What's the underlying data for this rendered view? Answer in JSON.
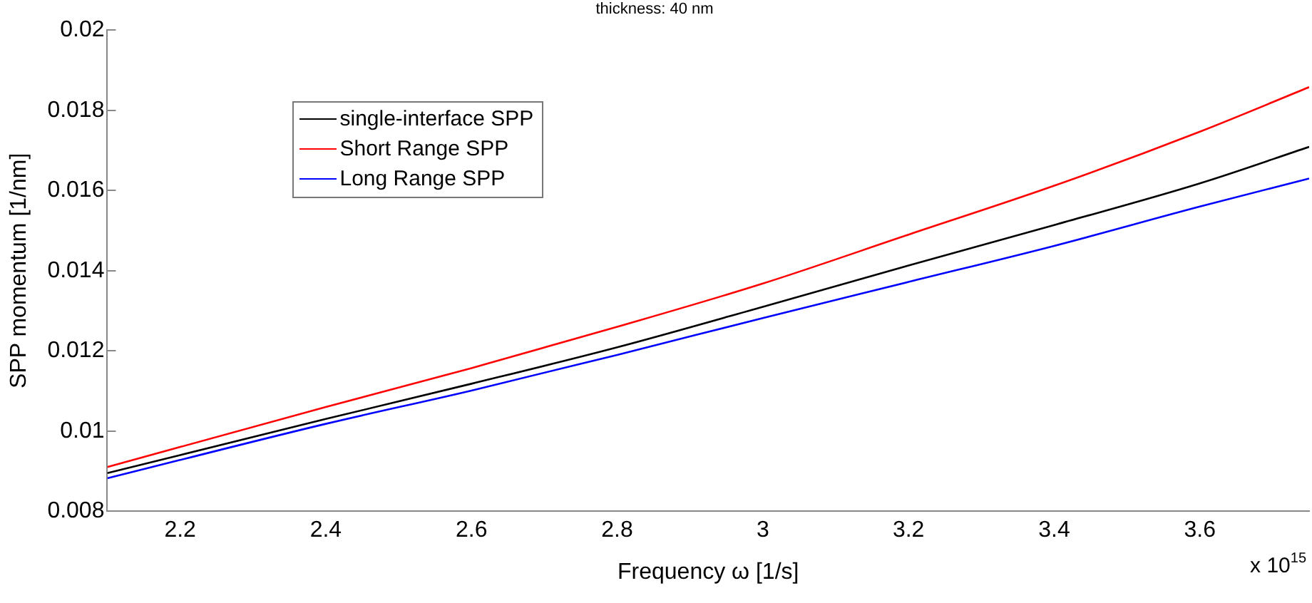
{
  "chart_data": {
    "type": "line",
    "title": "thickness: 40 nm",
    "xlabel": "Frequency ω [1/s]",
    "ylabel": "SPP momentum [1/nm]",
    "annotations": [
      "x 10$^{15}$"
    ],
    "x": [
      2.1,
      2.4,
      2.6,
      2.8,
      3.0,
      3.2,
      3.4,
      3.6,
      3.75
    ],
    "series": [
      {
        "name": "single-interface SPP",
        "color": "#000000",
        "values": [
          0.00895,
          0.0103,
          0.01118,
          0.01209,
          0.0131,
          0.01413,
          0.01514,
          0.01618,
          0.01709
        ]
      },
      {
        "name": "Short Range SPP",
        "color": "#ff0000",
        "values": [
          0.0091,
          0.0106,
          0.01157,
          0.0126,
          0.01368,
          0.0149,
          0.01612,
          0.01747,
          0.01858
        ]
      },
      {
        "name": "Long Range SPP",
        "color": "#0000ff",
        "values": [
          0.00882,
          0.01018,
          0.01101,
          0.0119,
          0.01282,
          0.01372,
          0.01462,
          0.0156,
          0.0163
        ]
      }
    ],
    "xlim": [
      2.1,
      3.75
    ],
    "xticks": [
      2.2,
      2.4,
      2.6,
      2.8,
      3,
      3.2,
      3.4,
      3.6
    ],
    "ylim": [
      0.008,
      0.02
    ],
    "yticks": [
      0.008,
      0.01,
      0.012,
      0.014,
      0.016,
      0.018,
      0.02
    ],
    "grid": false,
    "legend": "top left",
    "marker": "none",
    "line_style": "solid"
  }
}
